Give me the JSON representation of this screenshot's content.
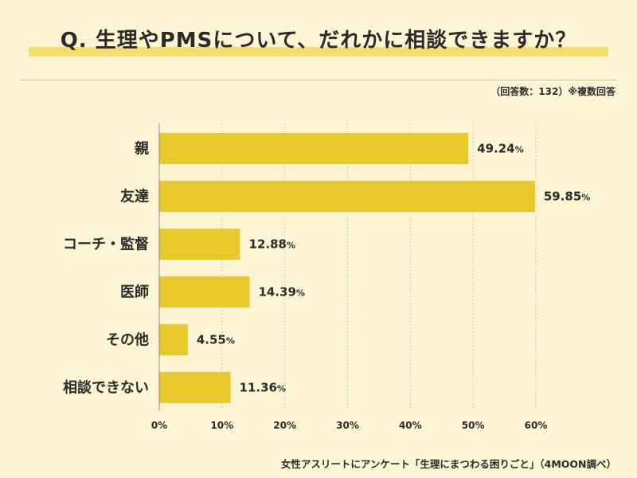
{
  "header": {
    "title": "Q. 生理やPMSについて、だれかに相談できますか？",
    "note": "（回答数：132）※複数回答"
  },
  "footer": {
    "source": "女性アスリートにアンケート「生理にまつわる困りごと」（4MOON調べ）"
  },
  "colors": {
    "bar": "#e8c82a",
    "background": "#fdf5d4",
    "highlight": "#f4de6d",
    "grid": "#b9b5a8"
  },
  "chart_data": {
    "type": "bar",
    "orientation": "horizontal",
    "categories": [
      "親",
      "友達",
      "コーチ・監督",
      "医師",
      "その他",
      "相談できない"
    ],
    "values": [
      49.24,
      59.85,
      12.88,
      14.39,
      4.55,
      11.36
    ],
    "value_labels": [
      "49.24",
      "59.85",
      "12.88",
      "14.39",
      "4.55",
      "11.36"
    ],
    "value_suffix": "%",
    "xlim": [
      0,
      60
    ],
    "xticks": [
      "0%",
      "10%",
      "20%",
      "30%",
      "40%",
      "50%",
      "60%"
    ],
    "grid": "vertical dotted lines",
    "xlabel": "",
    "ylabel": ""
  }
}
